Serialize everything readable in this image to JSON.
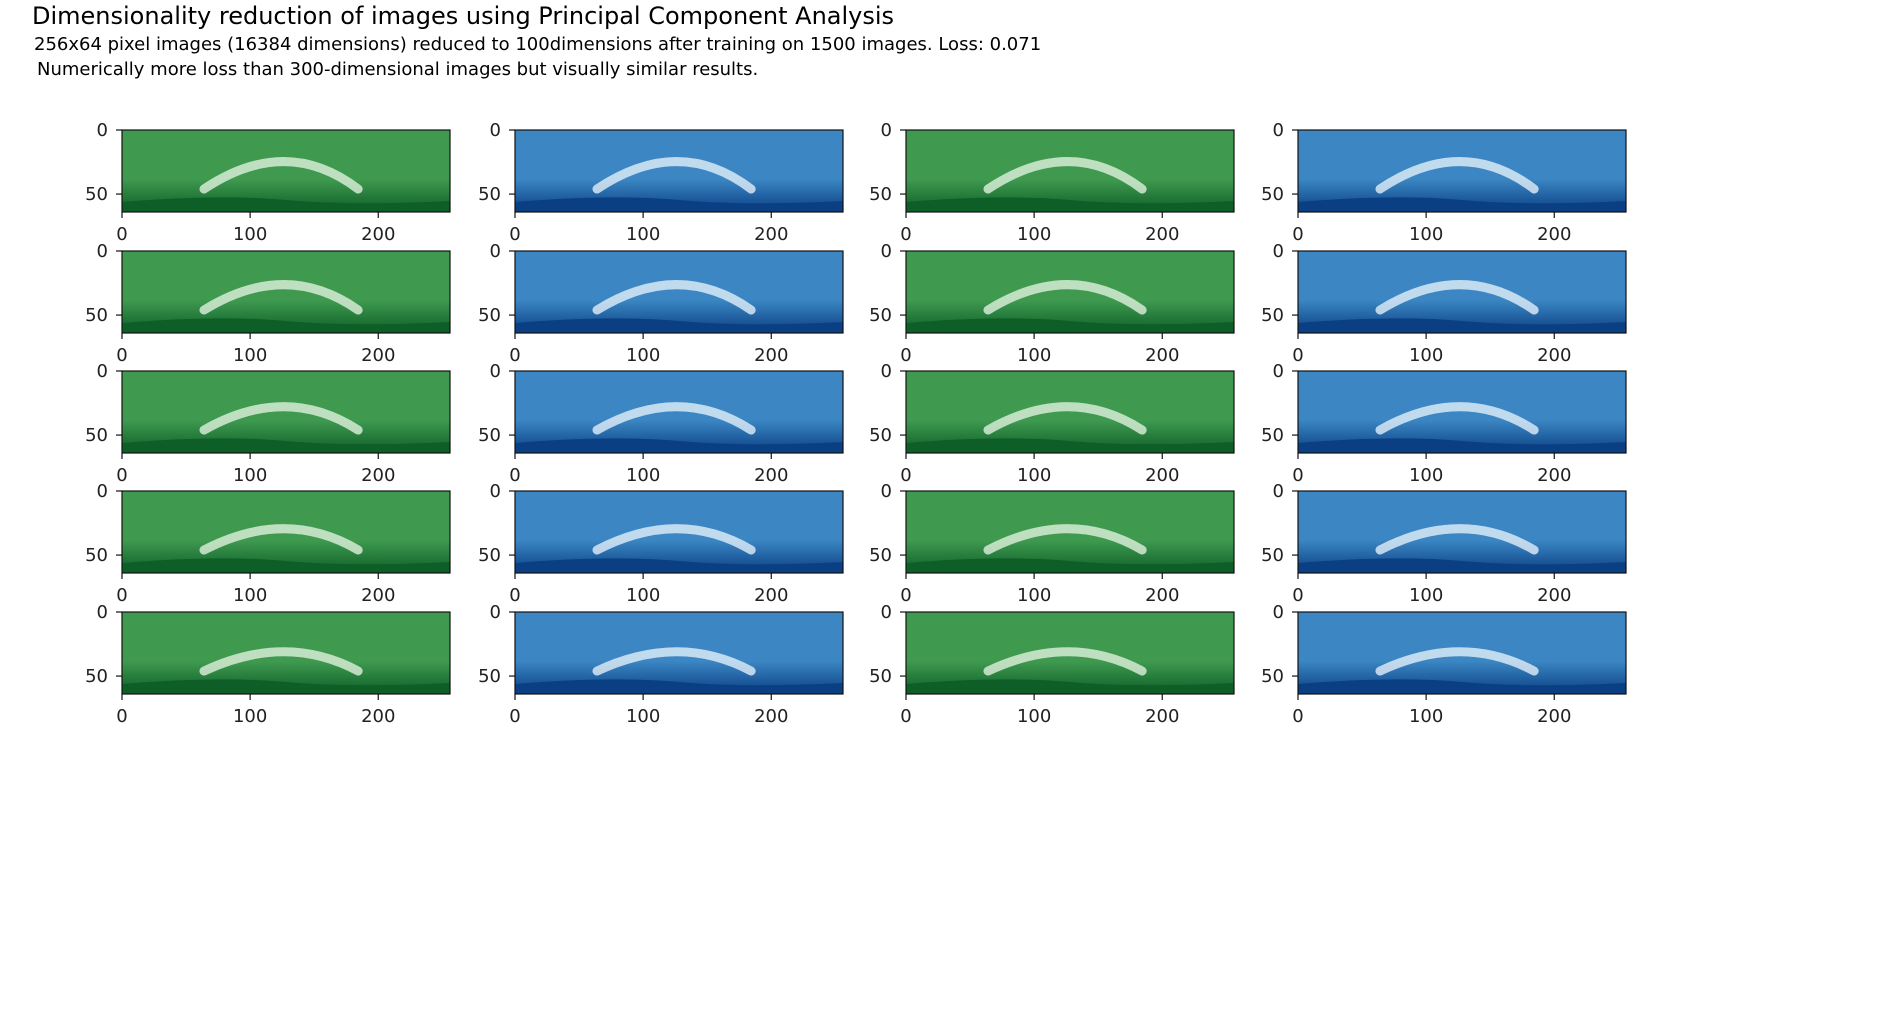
{
  "header": {
    "title": "Dimensionality reduction of images using Principal Component Analysis",
    "line1_prefix": "256x64 pixel images (16384 dimensions) reduced to ",
    "dims": "100",
    "line1_middle": "dimensions after training on 1500 images. Loss: ",
    "loss": "0.071",
    "line2": "Numerically more loss than 300-dimensional images but visually similar results."
  },
  "grid": {
    "rows": 5,
    "cols": 4,
    "x_ticks": [
      "0",
      "100",
      "200"
    ],
    "y_ticks": [
      "0",
      "50"
    ],
    "x_tick_values": [
      0,
      100,
      200
    ],
    "y_tick_values": [
      0,
      50
    ],
    "xlim": [
      0,
      256
    ],
    "ylim": [
      0,
      64
    ],
    "column_colormaps": [
      "Greens",
      "Blues",
      "Greens",
      "Blues"
    ]
  },
  "colors": {
    "green_dark": "#0d5e27",
    "green_mid": "#3f9a50",
    "green_light": "#e9f7e6",
    "blue_dark": "#0a3f84",
    "blue_mid": "#3b86c3",
    "blue_light": "#eef5fc"
  }
}
